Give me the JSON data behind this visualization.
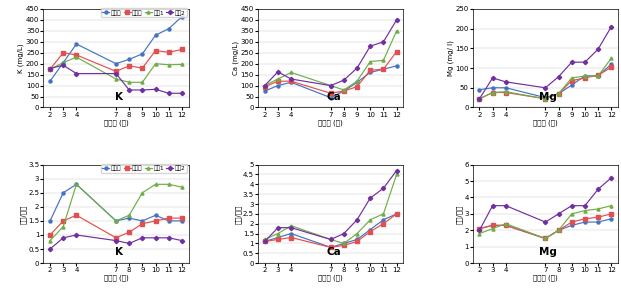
{
  "x": [
    2,
    3,
    4,
    7,
    8,
    9,
    10,
    11,
    12
  ],
  "legend_labels": [
    "그대단",
    "일반액",
    "수정1",
    "수정2"
  ],
  "legend_colors": [
    "#4472c4",
    "#e05050",
    "#70ad47",
    "#7030a0"
  ],
  "legend_markers": [
    "o",
    "s",
    "^",
    "D"
  ],
  "K_top": {
    "s0": [
      120,
      205,
      290,
      200,
      220,
      245,
      330,
      360,
      415
    ],
    "s1": [
      175,
      250,
      240,
      165,
      190,
      180,
      260,
      252,
      265
    ],
    "s2": [
      175,
      205,
      230,
      130,
      115,
      115,
      200,
      195,
      197
    ],
    "s3": [
      178,
      193,
      155,
      155,
      80,
      80,
      83,
      65,
      65
    ],
    "ylabel": "K (mg/L)",
    "ylim": [
      0,
      450
    ],
    "yticks": [
      0,
      50,
      100,
      150,
      200,
      250,
      300,
      350,
      400,
      450
    ],
    "label": "K"
  },
  "Ca_top": {
    "s0": [
      75,
      100,
      115,
      45,
      75,
      115,
      160,
      175,
      190
    ],
    "s1": [
      95,
      120,
      120,
      65,
      75,
      95,
      170,
      175,
      255
    ],
    "s2": [
      100,
      130,
      160,
      100,
      80,
      120,
      210,
      215,
      350
    ],
    "s3": [
      100,
      163,
      130,
      100,
      125,
      180,
      280,
      300,
      400
    ],
    "ylabel": "Ca (mg/L)",
    "ylim": [
      0,
      450
    ],
    "yticks": [
      0,
      50,
      100,
      150,
      200,
      250,
      300,
      350,
      400,
      450
    ],
    "label": "Ca"
  },
  "Mg_top": {
    "s0": [
      45,
      50,
      50,
      25,
      35,
      57,
      80,
      80,
      110
    ],
    "s1": [
      22,
      38,
      38,
      22,
      35,
      68,
      75,
      82,
      102
    ],
    "s2": [
      22,
      38,
      40,
      22,
      35,
      75,
      80,
      80,
      125
    ],
    "s3": [
      22,
      75,
      65,
      50,
      78,
      115,
      115,
      148,
      205
    ],
    "ylabel": "Mg (mg/ l)",
    "ylim": [
      0,
      250
    ],
    "yticks": [
      0,
      50,
      100,
      150,
      200,
      250
    ],
    "label": "Mg"
  },
  "K_bot": {
    "s0": [
      1.5,
      2.5,
      2.8,
      1.5,
      1.6,
      1.5,
      1.7,
      1.5,
      1.5
    ],
    "s1": [
      1.0,
      1.5,
      1.7,
      0.9,
      1.1,
      1.4,
      1.5,
      1.6,
      1.6
    ],
    "s2": [
      0.8,
      1.3,
      2.8,
      1.5,
      1.7,
      2.5,
      2.8,
      2.8,
      2.7
    ],
    "s3": [
      0.5,
      0.9,
      1.0,
      0.8,
      0.7,
      0.9,
      0.9,
      0.9,
      0.8
    ],
    "ylabel": "배액/급액",
    "ylim": [
      0,
      3.5
    ],
    "yticks": [
      0,
      0.5,
      1.0,
      1.5,
      2.0,
      2.5,
      3.0,
      3.5
    ],
    "label": "K"
  },
  "Ca_bot": {
    "s0": [
      1.1,
      1.3,
      1.5,
      0.8,
      1.0,
      1.2,
      1.7,
      2.2,
      2.5
    ],
    "s1": [
      1.1,
      1.2,
      1.3,
      0.8,
      0.9,
      1.1,
      1.6,
      2.0,
      2.5
    ],
    "s2": [
      1.2,
      1.5,
      1.9,
      1.2,
      1.0,
      1.5,
      2.2,
      2.5,
      4.5
    ],
    "s3": [
      1.1,
      1.8,
      1.8,
      1.2,
      1.5,
      2.2,
      3.3,
      3.8,
      4.7
    ],
    "ylabel": "배액/급액",
    "ylim": [
      0,
      5.0
    ],
    "yticks": [
      0,
      0.5,
      1.0,
      1.5,
      2.0,
      2.5,
      3.0,
      3.5,
      4.0,
      4.5,
      5.0
    ],
    "label": "Ca"
  },
  "Mg_bot": {
    "s0": [
      2.1,
      2.3,
      2.3,
      1.5,
      2.0,
      2.3,
      2.5,
      2.5,
      2.7
    ],
    "s1": [
      2.1,
      2.3,
      2.3,
      1.5,
      2.0,
      2.5,
      2.7,
      2.8,
      3.0
    ],
    "s2": [
      1.8,
      2.1,
      2.4,
      1.5,
      2.0,
      3.0,
      3.2,
      3.3,
      3.5
    ],
    "s3": [
      2.0,
      3.5,
      3.5,
      2.5,
      3.0,
      3.5,
      3.5,
      4.5,
      5.2
    ],
    "ylabel": "배액/급액",
    "ylim": [
      0,
      6.0
    ],
    "yticks": [
      0,
      1.0,
      2.0,
      3.0,
      4.0,
      5.0,
      6.0
    ],
    "label": "Mg"
  },
  "xlabel": "정식후 (주)"
}
